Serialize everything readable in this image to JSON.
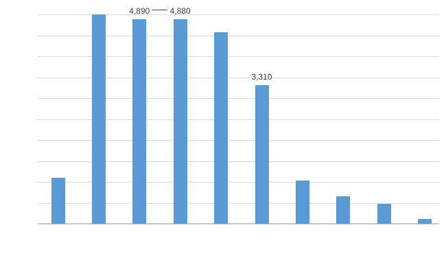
{
  "chart_data": {
    "type": "bar",
    "title": "",
    "categories": [
      "",
      "",
      "",
      "",
      "",
      "",
      "",
      "",
      "",
      ""
    ],
    "values": [
      1100,
      5000,
      4890,
      4880,
      4575,
      3310,
      1035,
      655,
      475,
      115
    ],
    "ylim": [
      0,
      5000
    ],
    "y_major_unit": 500,
    "gridlines": true,
    "legend": "none",
    "axis_tick_labels_visible": false,
    "data_labels": [
      {
        "bar_index": 2,
        "text": "4,890"
      },
      {
        "bar_index": 3,
        "text": "4,880"
      },
      {
        "bar_index": 5,
        "text": "3,310"
      }
    ],
    "annotations": [
      {
        "type": "leader-dash",
        "between_labels": [
          "4,890",
          "4,880"
        ]
      }
    ],
    "colors": {
      "bar": "#5b9bd5",
      "gridline": "#d9d9d9",
      "axis_line": "#c6c6c6",
      "data_label": "#404040",
      "background": "#ffffff"
    }
  }
}
